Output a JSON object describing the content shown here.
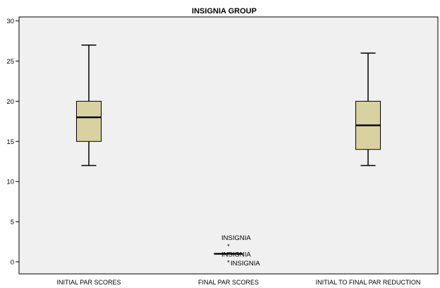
{
  "chart_data": {
    "type": "boxplot",
    "title": "INSIGNIA GROUP",
    "xlabel": "",
    "ylabel": "",
    "ylim": [
      -1.5,
      30.5
    ],
    "yticks": [
      0,
      5,
      10,
      15,
      20,
      25,
      30
    ],
    "grid": false,
    "categories": [
      "INITIAL PAR SCORES",
      "FINAL PAR SCORES",
      "INITIAL TO FINAL PAR REDUCTION"
    ],
    "boxes": [
      {
        "category": "INITIAL PAR SCORES",
        "whisker_low": 12,
        "q1": 15,
        "median": 18,
        "q3": 20,
        "whisker_high": 27,
        "outliers": []
      },
      {
        "category": "FINAL PAR SCORES",
        "whisker_low": 1,
        "q1": 1,
        "median": 1,
        "q3": 1,
        "whisker_high": 1,
        "outliers": [
          {
            "value": 2,
            "label": "INSIGNIA"
          },
          {
            "value": 1,
            "label": "INSIGNIA"
          },
          {
            "value": 0,
            "label": "INSIGNIA"
          }
        ]
      },
      {
        "category": "INITIAL TO FINAL PAR REDUCTION",
        "whisker_low": 12,
        "q1": 14,
        "median": 17,
        "q3": 20,
        "whisker_high": 26,
        "outliers": []
      }
    ],
    "colors": {
      "plot_background": "#f0f0f0",
      "box_fill": "#d8d2a0",
      "line": "#000000"
    }
  }
}
